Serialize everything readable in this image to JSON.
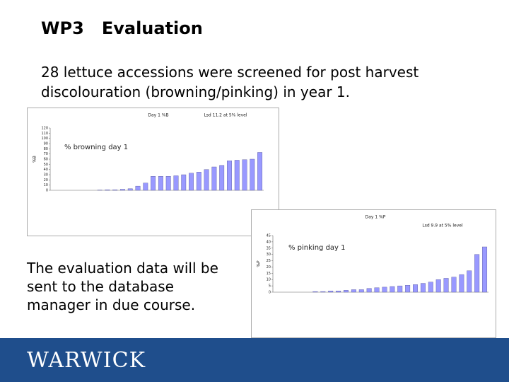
{
  "slide": {
    "title": "WP3   Evaluation",
    "text": "28 lettuce accessions were screened for post harvest discolouration (browning/pinking) in year 1.",
    "note": "The evaluation data will be sent to the database manager in due course."
  },
  "chart_data": [
    {
      "type": "bar",
      "title": "Day 1 %B",
      "annotation": "Lsd 11.2 at 5% level",
      "label": "% browning day 1",
      "y_label": "%B",
      "categories": [
        null,
        null,
        null,
        null,
        null,
        null,
        null,
        null,
        null,
        null,
        null,
        null,
        null,
        null,
        null,
        null,
        null,
        null,
        null,
        null,
        null,
        null,
        null,
        null,
        null,
        null,
        null,
        null
      ],
      "values": [
        0,
        0,
        0,
        0,
        0,
        0,
        0.5,
        1,
        1,
        2,
        3,
        8,
        14,
        27,
        27,
        27,
        28,
        30,
        33,
        35,
        40,
        45,
        48,
        57,
        58,
        59,
        60,
        73
      ],
      "color": "#9999ff",
      "ylim": [
        0,
        120
      ],
      "yticks": [
        0,
        10,
        20,
        30,
        40,
        50,
        60,
        70,
        80,
        90,
        100,
        110,
        120
      ]
    },
    {
      "type": "bar",
      "title": "Day 1 %P",
      "annotation": "Lsd 9.9 at 5% level",
      "label": "% pinking day 1",
      "y_label": "%P",
      "categories": [
        null,
        null,
        null,
        null,
        null,
        null,
        null,
        null,
        null,
        null,
        null,
        null,
        null,
        null,
        null,
        null,
        null,
        null,
        null,
        null,
        null,
        null,
        null,
        null,
        null,
        null,
        null,
        null
      ],
      "values": [
        0,
        0,
        0,
        0,
        0,
        0.5,
        0.5,
        1,
        1,
        1.5,
        2,
        2,
        3,
        3.5,
        4,
        4.5,
        5,
        5.5,
        6,
        7,
        8,
        10,
        11,
        12,
        14,
        17,
        30,
        36
      ],
      "color": "#9999ff",
      "ylim": [
        0,
        45
      ],
      "yticks": [
        0,
        5,
        10,
        15,
        20,
        25,
        30,
        35,
        40,
        45
      ]
    }
  ],
  "footer": {
    "logo": "WARWICK"
  }
}
